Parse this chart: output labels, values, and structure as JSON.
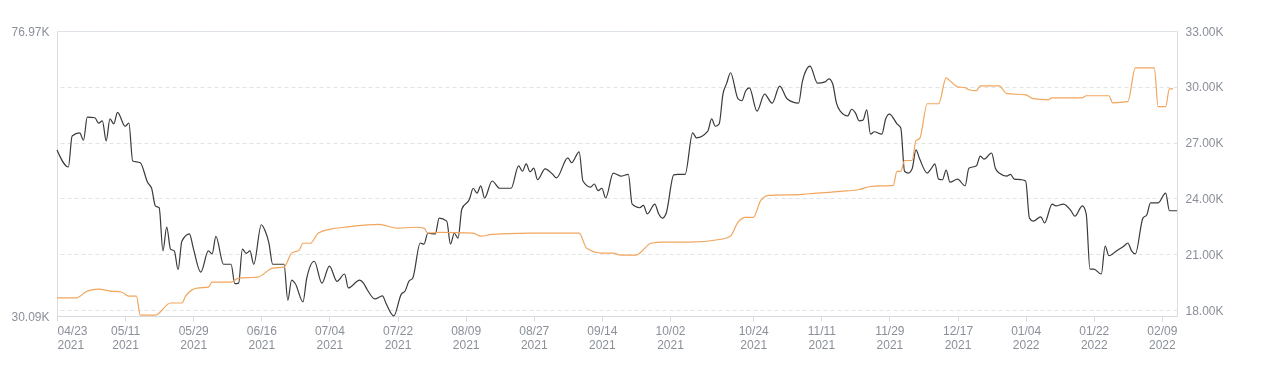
{
  "chart_data": {
    "type": "line",
    "xlim": [
      "2021-04-23",
      "2022-02-13"
    ],
    "xticks": [
      {
        "value": "2021-04-23",
        "label": "04/23 2021"
      },
      {
        "value": "2021-05-11",
        "label": "05/11 2021"
      },
      {
        "value": "2021-05-29",
        "label": "05/29 2021"
      },
      {
        "value": "2021-06-16",
        "label": "06/16 2021"
      },
      {
        "value": "2021-07-04",
        "label": "07/04 2021"
      },
      {
        "value": "2021-07-22",
        "label": "07/22 2021"
      },
      {
        "value": "2021-08-09",
        "label": "08/09 2021"
      },
      {
        "value": "2021-08-27",
        "label": "08/27 2021"
      },
      {
        "value": "2021-09-14",
        "label": "09/14 2021"
      },
      {
        "value": "2021-10-02",
        "label": "10/02 2021"
      },
      {
        "value": "2021-10-24",
        "label": "10/24 2021"
      },
      {
        "value": "2021-11-11",
        "label": "11/11 2021"
      },
      {
        "value": "2021-11-29",
        "label": "11/29 2021"
      },
      {
        "value": "2021-12-17",
        "label": "12/17 2021"
      },
      {
        "value": "2022-01-04",
        "label": "01/04 2022"
      },
      {
        "value": "2022-01-22",
        "label": "01/22 2022"
      },
      {
        "value": "2022-02-09",
        "label": "02/09 2022"
      }
    ],
    "ylim": [
      30.09,
      76.97
    ],
    "yticks": [
      {
        "value": 30.09,
        "label": "30.09K"
      },
      {
        "value": 76.97,
        "label": "76.97K"
      }
    ],
    "y2lim": [
      17.68,
      33.0
    ],
    "y2ticks": [
      {
        "value": 18,
        "label": "18.00K"
      },
      {
        "value": 21,
        "label": "21.00K"
      },
      {
        "value": 24,
        "label": "24.00K"
      },
      {
        "value": 27,
        "label": "27.00K"
      },
      {
        "value": 30,
        "label": "30.00K"
      },
      {
        "value": 33,
        "label": "33.00K"
      }
    ],
    "grid": "y",
    "series": [
      {
        "color": "#3a3a3a",
        "axis": "y",
        "x": [
          "2021-04-23",
          "2021-04-26",
          "2021-04-27",
          "2021-04-29",
          "2021-04-30",
          "2021-05-01",
          "2021-05-03",
          "2021-05-04",
          "2021-05-05",
          "2021-05-06",
          "2021-05-07",
          "2021-05-08",
          "2021-05-09",
          "2021-05-11",
          "2021-05-12",
          "2021-05-13",
          "2021-05-15",
          "2021-05-17",
          "2021-05-18",
          "2021-05-19",
          "2021-05-20",
          "2021-05-21",
          "2021-05-22",
          "2021-05-23",
          "2021-05-24",
          "2021-05-25",
          "2021-05-26",
          "2021-05-28",
          "2021-05-29",
          "2021-05-31",
          "2021-06-02",
          "2021-06-03",
          "2021-06-04",
          "2021-06-06",
          "2021-06-08",
          "2021-06-09",
          "2021-06-10",
          "2021-06-11",
          "2021-06-12",
          "2021-06-13",
          "2021-06-14",
          "2021-06-16",
          "2021-06-17",
          "2021-06-18",
          "2021-06-19",
          "2021-06-21",
          "2021-06-22",
          "2021-06-23",
          "2021-06-24",
          "2021-06-25",
          "2021-06-27",
          "2021-06-28",
          "2021-06-30",
          "2021-07-02",
          "2021-07-04",
          "2021-07-06",
          "2021-07-08",
          "2021-07-09",
          "2021-07-12",
          "2021-07-13",
          "2021-07-14",
          "2021-07-16",
          "2021-07-18",
          "2021-07-19",
          "2021-07-21",
          "2021-07-23",
          "2021-07-24",
          "2021-07-25",
          "2021-07-26",
          "2021-07-28",
          "2021-07-29",
          "2021-07-30",
          "2021-08-01",
          "2021-08-02",
          "2021-08-04",
          "2021-08-05",
          "2021-08-06",
          "2021-08-07",
          "2021-08-08",
          "2021-08-10",
          "2021-08-11",
          "2021-08-12",
          "2021-08-13",
          "2021-08-14",
          "2021-08-16",
          "2021-08-18",
          "2021-08-19",
          "2021-08-21",
          "2021-08-23",
          "2021-08-24",
          "2021-08-25",
          "2021-08-26",
          "2021-08-27",
          "2021-08-28",
          "2021-08-30",
          "2021-09-01",
          "2021-09-02",
          "2021-09-05",
          "2021-09-06",
          "2021-09-08",
          "2021-09-09",
          "2021-09-11",
          "2021-09-12",
          "2021-09-13",
          "2021-09-14",
          "2021-09-15",
          "2021-09-17",
          "2021-09-19",
          "2021-09-21",
          "2021-09-22",
          "2021-09-24",
          "2021-09-25",
          "2021-09-26",
          "2021-09-28",
          "2021-09-29",
          "2021-09-30",
          "2021-10-01",
          "2021-10-03",
          "2021-10-04",
          "2021-10-06",
          "2021-10-08",
          "2021-10-09",
          "2021-10-12",
          "2021-10-13",
          "2021-10-14",
          "2021-10-15",
          "2021-10-16",
          "2021-10-17",
          "2021-10-18",
          "2021-10-20",
          "2021-10-21",
          "2021-10-22",
          "2021-10-23",
          "2021-10-25",
          "2021-10-27",
          "2021-10-29",
          "2021-10-31",
          "2021-11-02",
          "2021-11-05",
          "2021-11-06",
          "2021-11-08",
          "2021-11-10",
          "2021-11-12",
          "2021-11-13",
          "2021-11-14",
          "2021-11-15",
          "2021-11-16",
          "2021-11-18",
          "2021-11-19",
          "2021-11-20",
          "2021-11-21",
          "2021-11-22",
          "2021-11-23",
          "2021-11-24",
          "2021-11-25",
          "2021-11-27",
          "2021-11-28",
          "2021-11-29",
          "2021-12-01",
          "2021-12-02",
          "2021-12-03",
          "2021-12-04",
          "2021-12-05",
          "2021-12-06",
          "2021-12-07",
          "2021-12-09",
          "2021-12-10",
          "2021-12-11",
          "2021-12-12",
          "2021-12-13",
          "2021-12-14",
          "2021-12-15",
          "2021-12-17",
          "2021-12-19",
          "2021-12-20",
          "2021-12-22",
          "2021-12-23",
          "2021-12-24",
          "2021-12-26",
          "2021-12-27",
          "2021-12-28",
          "2021-12-30",
          "2021-12-31",
          "2022-01-01",
          "2022-01-03",
          "2022-01-04",
          "2022-01-05",
          "2022-01-06",
          "2022-01-08",
          "2022-01-09",
          "2022-01-11",
          "2022-01-12",
          "2022-01-14",
          "2022-01-16",
          "2022-01-17",
          "2022-01-19",
          "2022-01-20",
          "2022-01-21",
          "2022-01-22",
          "2022-01-24",
          "2022-01-25",
          "2022-01-26",
          "2022-01-28",
          "2022-01-30",
          "2022-01-31",
          "2022-02-01",
          "2022-02-02",
          "2022-02-04",
          "2022-02-05",
          "2022-02-06",
          "2022-02-08",
          "2022-02-10",
          "2022-02-11",
          "2022-02-13"
        ],
        "values": [
          57.4,
          54.6,
          59.7,
          60.2,
          59.0,
          62.8,
          62.7,
          61.8,
          62.2,
          58.9,
          62.5,
          61.7,
          63.6,
          61.3,
          61.8,
          55.6,
          55.3,
          52.0,
          51.1,
          48.2,
          47.9,
          40.8,
          44.7,
          41.1,
          40.8,
          37.7,
          42.4,
          43.6,
          41.3,
          37.3,
          40.8,
          40.3,
          43.2,
          38.6,
          38.6,
          35.4,
          35.5,
          41.1,
          40.4,
          40.8,
          38.6,
          45.1,
          44.1,
          42.1,
          38.6,
          38.6,
          38.6,
          32.7,
          36.0,
          35.4,
          32.4,
          36.3,
          39.1,
          35.5,
          38.3,
          35.8,
          37.0,
          34.7,
          36.0,
          35.5,
          34.4,
          32.9,
          33.4,
          32.1,
          30.1,
          33.7,
          34.2,
          35.8,
          36.3,
          42.1,
          41.9,
          43.7,
          43.6,
          46.2,
          45.7,
          41.9,
          43.7,
          42.9,
          47.7,
          49.3,
          51.1,
          50.3,
          51.5,
          49.5,
          52.3,
          51.1,
          51.1,
          51.1,
          54.8,
          53.9,
          55.1,
          53.8,
          54.4,
          52.5,
          54.3,
          53.4,
          52.8,
          56.1,
          55.3,
          57.1,
          52.3,
          51.3,
          51.8,
          50.7,
          51.1,
          49.5,
          53.6,
          53.1,
          53.4,
          48.5,
          47.9,
          48.3,
          46.9,
          48.5,
          46.9,
          46.2,
          47.0,
          53.3,
          53.4,
          53.4,
          60.2,
          59.4,
          60.5,
          62.5,
          61.3,
          61.7,
          66.6,
          68.4,
          70.1,
          65.8,
          65.5,
          67.1,
          67.6,
          63.8,
          66.6,
          65.1,
          67.9,
          65.8,
          65.1,
          68.7,
          71.2,
          68.4,
          68.6,
          69.1,
          68.3,
          65.1,
          63.8,
          63.0,
          64.1,
          63.5,
          62.2,
          62.3,
          64.0,
          60.0,
          60.4,
          60.0,
          62.5,
          63.3,
          61.7,
          61.0,
          53.9,
          53.6,
          54.3,
          57.4,
          55.9,
          53.6,
          54.3,
          55.1,
          52.6,
          52.5,
          54.1,
          52.1,
          52.6,
          51.5,
          54.4,
          54.8,
          56.4,
          55.9,
          56.9,
          54.4,
          53.6,
          53.1,
          53.4,
          52.6,
          52.5,
          52.3,
          46.2,
          45.7,
          46.4,
          45.4,
          48.5,
          48.2,
          48.5,
          47.4,
          46.5,
          48.2,
          46.9,
          37.8,
          37.8,
          37.0,
          41.6,
          40.0,
          40.8,
          41.6,
          42.1,
          40.8,
          40.3,
          46.2,
          46.7,
          48.7,
          48.7,
          50.3,
          47.4,
          47.4
        ]
      },
      {
        "color": "#f2a55c",
        "axis": "y2",
        "x": [
          "2021-04-23",
          "2021-04-28",
          "2021-05-01",
          "2021-05-04",
          "2021-05-07",
          "2021-05-10",
          "2021-05-12",
          "2021-05-14",
          "2021-05-15",
          "2021-05-19",
          "2021-05-23",
          "2021-05-26",
          "2021-05-27",
          "2021-05-30",
          "2021-06-02",
          "2021-06-03",
          "2021-06-08",
          "2021-06-10",
          "2021-06-15",
          "2021-06-19",
          "2021-06-22",
          "2021-06-24",
          "2021-06-26",
          "2021-06-27",
          "2021-06-29",
          "2021-07-01",
          "2021-07-04",
          "2021-07-08",
          "2021-07-10",
          "2021-07-17",
          "2021-07-22",
          "2021-07-27",
          "2021-07-29",
          "2021-07-30",
          "2021-08-02",
          "2021-08-11",
          "2021-08-13",
          "2021-08-16",
          "2021-08-26",
          "2021-09-01",
          "2021-09-08",
          "2021-09-10",
          "2021-09-14",
          "2021-09-17",
          "2021-09-19",
          "2021-09-23",
          "2021-09-27",
          "2021-09-30",
          "2021-10-07",
          "2021-10-16",
          "2021-10-18",
          "2021-10-20",
          "2021-10-22",
          "2021-10-24",
          "2021-10-26",
          "2021-10-28",
          "2021-11-06",
          "2021-11-09",
          "2021-11-16",
          "2021-11-21",
          "2021-11-24",
          "2021-11-30",
          "2021-12-01",
          "2021-12-02",
          "2021-12-03",
          "2021-12-05",
          "2021-12-06",
          "2021-12-07",
          "2021-12-09",
          "2021-12-12",
          "2021-12-14",
          "2021-12-15",
          "2021-12-17",
          "2021-12-19",
          "2021-12-20",
          "2021-12-22",
          "2021-12-23",
          "2021-12-28",
          "2021-12-30",
          "2022-01-04",
          "2022-01-06",
          "2022-01-10",
          "2022-01-11",
          "2022-01-19",
          "2022-01-20",
          "2022-01-26",
          "2022-01-27",
          "2022-01-31",
          "2022-02-02",
          "2022-02-07",
          "2022-02-08",
          "2022-02-10",
          "2022-02-11",
          "2022-02-12"
        ],
        "values": [
          18.65,
          18.65,
          19.02,
          19.13,
          19.02,
          18.97,
          18.75,
          18.75,
          17.73,
          17.73,
          18.38,
          18.38,
          18.75,
          19.18,
          19.23,
          19.5,
          19.5,
          19.72,
          19.77,
          20.25,
          20.31,
          21.06,
          21.22,
          21.59,
          21.59,
          22.13,
          22.34,
          22.45,
          22.5,
          22.61,
          22.4,
          22.45,
          22.4,
          22.13,
          22.18,
          22.13,
          21.97,
          22.07,
          22.13,
          22.13,
          22.13,
          21.32,
          21.06,
          21.06,
          20.95,
          20.95,
          21.59,
          21.65,
          21.65,
          21.82,
          21.98,
          22.72,
          22.98,
          22.98,
          23.89,
          24.16,
          24.22,
          24.27,
          24.38,
          24.48,
          24.64,
          24.7,
          25.45,
          25.45,
          26.04,
          26.04,
          27.11,
          27.22,
          29.09,
          29.09,
          30.48,
          30.32,
          30.0,
          29.95,
          29.84,
          29.79,
          30.05,
          30.05,
          29.63,
          29.57,
          29.36,
          29.3,
          29.41,
          29.41,
          29.52,
          29.52,
          29.14,
          29.2,
          31.02,
          31.02,
          28.93,
          28.93,
          29.89,
          29.89
        ]
      }
    ]
  }
}
